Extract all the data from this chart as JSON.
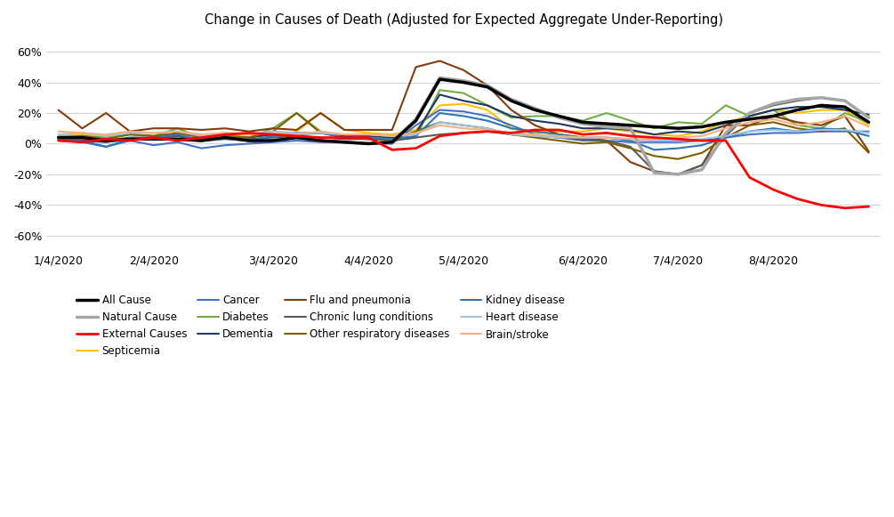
{
  "title": "Change in Causes of Death (Adjusted for Expected Aggregate Under-Reporting)",
  "background_color": "#FFFFFF",
  "grid_color": "#D3D3D3",
  "n_points": 35,
  "xtick_positions": [
    0,
    4,
    9,
    13,
    17,
    22,
    26,
    30,
    34
  ],
  "xtick_labels": [
    "1/4/2020",
    "2/4/2020",
    "3/4/2020",
    "4/4/2020",
    "5/4/2020",
    "6/4/2020",
    "7/4/2020",
    "8/4/2020",
    ""
  ],
  "ylim": [
    -0.7,
    0.7
  ],
  "yticks": [
    -0.6,
    -0.4,
    -0.2,
    0.0,
    0.2,
    0.4,
    0.6
  ],
  "series": [
    {
      "name": "All Cause",
      "color": "#000000",
      "linewidth": 2.5,
      "zorder": 5,
      "data": [
        0.04,
        0.04,
        0.02,
        0.03,
        0.03,
        0.03,
        0.02,
        0.04,
        0.02,
        0.02,
        0.04,
        0.02,
        0.01,
        0.0,
        0.01,
        0.15,
        0.42,
        0.4,
        0.37,
        0.28,
        0.22,
        0.18,
        0.14,
        0.13,
        0.12,
        0.11,
        0.1,
        0.11,
        0.14,
        0.16,
        0.18,
        0.22,
        0.25,
        0.24,
        0.14
      ]
    },
    {
      "name": "Natural Cause",
      "color": "#A6A6A6",
      "linewidth": 2.5,
      "zorder": 4,
      "data": [
        0.04,
        0.04,
        0.02,
        0.03,
        0.03,
        0.03,
        0.02,
        0.04,
        0.02,
        0.02,
        0.04,
        0.02,
        0.01,
        0.0,
        0.01,
        0.16,
        0.43,
        0.41,
        0.38,
        0.29,
        0.23,
        0.17,
        0.13,
        0.11,
        0.1,
        -0.19,
        -0.2,
        -0.17,
        0.07,
        0.2,
        0.26,
        0.29,
        0.3,
        0.28,
        0.17
      ]
    },
    {
      "name": "External Causes",
      "color": "#FF0000",
      "linewidth": 2.0,
      "zorder": 6,
      "data": [
        0.02,
        0.01,
        0.03,
        0.02,
        0.04,
        0.02,
        0.04,
        0.06,
        0.07,
        0.06,
        0.05,
        0.04,
        0.04,
        0.04,
        -0.04,
        -0.03,
        0.05,
        0.07,
        0.08,
        0.07,
        0.09,
        0.09,
        0.06,
        0.07,
        0.05,
        0.04,
        0.03,
        0.02,
        0.02,
        -0.22,
        -0.3,
        -0.36,
        -0.4,
        -0.42,
        -0.41
      ]
    },
    {
      "name": "Septicemia",
      "color": "#FFC000",
      "linewidth": 1.5,
      "zorder": 3,
      "data": [
        0.05,
        0.06,
        0.05,
        0.06,
        0.05,
        0.06,
        0.05,
        0.05,
        0.06,
        0.05,
        0.08,
        0.2,
        0.09,
        0.07,
        0.06,
        0.09,
        0.25,
        0.26,
        0.22,
        0.1,
        0.07,
        0.08,
        0.08,
        0.1,
        0.08,
        0.06,
        0.05,
        0.08,
        0.14,
        0.18,
        0.22,
        0.2,
        0.22,
        0.22,
        0.12
      ]
    },
    {
      "name": "Cancer",
      "color": "#4472C4",
      "linewidth": 1.5,
      "zorder": 3,
      "data": [
        0.02,
        0.01,
        -0.02,
        0.02,
        -0.01,
        0.01,
        -0.03,
        -0.01,
        0.0,
        0.01,
        0.02,
        0.01,
        0.01,
        0.0,
        0.0,
        0.12,
        0.22,
        0.21,
        0.18,
        0.12,
        0.06,
        0.04,
        0.02,
        0.02,
        0.01,
        0.01,
        0.01,
        0.02,
        0.04,
        0.06,
        0.07,
        0.07,
        0.08,
        0.08,
        0.08
      ]
    },
    {
      "name": "Diabetes",
      "color": "#70AD47",
      "linewidth": 1.5,
      "zorder": 3,
      "data": [
        0.04,
        0.05,
        0.04,
        0.06,
        0.05,
        0.1,
        0.04,
        0.05,
        0.04,
        0.1,
        0.2,
        0.08,
        0.05,
        0.03,
        0.02,
        0.04,
        0.35,
        0.33,
        0.25,
        0.17,
        0.18,
        0.18,
        0.15,
        0.2,
        0.15,
        0.1,
        0.14,
        0.13,
        0.25,
        0.18,
        0.22,
        0.12,
        0.1,
        0.2,
        0.14
      ]
    },
    {
      "name": "Dementia",
      "color": "#1F3864",
      "linewidth": 1.5,
      "zorder": 3,
      "data": [
        0.03,
        0.02,
        0.01,
        0.03,
        0.04,
        0.05,
        0.02,
        0.04,
        0.04,
        0.06,
        0.07,
        0.07,
        0.05,
        0.05,
        0.04,
        0.07,
        0.32,
        0.28,
        0.25,
        0.18,
        0.15,
        0.13,
        0.1,
        0.1,
        0.09,
        0.06,
        0.08,
        0.07,
        0.12,
        0.18,
        0.22,
        0.24,
        0.24,
        0.22,
        0.19
      ]
    },
    {
      "name": "Flu and pneumonia",
      "color": "#843C0C",
      "linewidth": 1.5,
      "zorder": 3,
      "data": [
        0.22,
        0.1,
        0.2,
        0.08,
        0.1,
        0.1,
        0.09,
        0.1,
        0.08,
        0.1,
        0.09,
        0.2,
        0.09,
        0.09,
        0.09,
        0.5,
        0.54,
        0.48,
        0.38,
        0.22,
        0.12,
        0.06,
        0.04,
        0.02,
        -0.12,
        -0.18,
        -0.2,
        -0.14,
        0.12,
        0.12,
        0.18,
        0.14,
        0.12,
        0.18,
        -0.05
      ]
    },
    {
      "name": "Chronic lung conditions",
      "color": "#595959",
      "linewidth": 1.5,
      "zorder": 3,
      "data": [
        0.04,
        0.03,
        0.02,
        0.04,
        0.04,
        0.05,
        0.03,
        0.04,
        0.03,
        0.04,
        0.05,
        0.04,
        0.03,
        0.03,
        0.02,
        0.04,
        0.06,
        0.07,
        0.08,
        0.06,
        0.05,
        0.04,
        0.03,
        0.02,
        -0.02,
        -0.18,
        -0.2,
        -0.14,
        0.05,
        0.2,
        0.25,
        0.28,
        0.3,
        0.28,
        0.17
      ]
    },
    {
      "name": "Other respiratory diseases",
      "color": "#7F6000",
      "linewidth": 1.5,
      "zorder": 3,
      "data": [
        0.04,
        0.05,
        0.03,
        0.06,
        0.05,
        0.07,
        0.04,
        0.05,
        0.04,
        0.08,
        0.2,
        0.07,
        0.04,
        0.03,
        0.03,
        0.08,
        0.14,
        0.12,
        0.1,
        0.06,
        0.04,
        0.02,
        0.0,
        0.01,
        -0.03,
        -0.08,
        -0.1,
        -0.06,
        0.04,
        0.12,
        0.14,
        0.1,
        0.08,
        0.1,
        -0.06
      ]
    },
    {
      "name": "Kidney disease",
      "color": "#2E75B6",
      "linewidth": 1.5,
      "zorder": 3,
      "data": [
        0.03,
        0.02,
        -0.02,
        0.03,
        0.04,
        0.06,
        0.02,
        0.03,
        0.02,
        0.05,
        0.06,
        0.07,
        0.04,
        0.04,
        0.03,
        0.05,
        0.2,
        0.18,
        0.15,
        0.1,
        0.08,
        0.06,
        0.04,
        0.04,
        0.02,
        -0.04,
        -0.03,
        -0.01,
        0.04,
        0.08,
        0.1,
        0.08,
        0.1,
        0.09,
        0.05
      ]
    },
    {
      "name": "Heart disease",
      "color": "#9DC3E6",
      "linewidth": 1.5,
      "zorder": 3,
      "data": [
        0.06,
        0.07,
        0.05,
        0.07,
        0.07,
        0.08,
        0.05,
        0.07,
        0.06,
        0.08,
        0.07,
        0.07,
        0.06,
        0.06,
        0.05,
        0.06,
        0.14,
        0.12,
        0.1,
        0.06,
        0.05,
        0.04,
        0.04,
        0.04,
        0.03,
        0.02,
        0.02,
        0.03,
        0.05,
        0.08,
        0.09,
        0.08,
        0.09,
        0.09,
        0.07
      ]
    },
    {
      "name": "Brain/stroke",
      "color": "#F4B183",
      "linewidth": 1.5,
      "zorder": 3,
      "data": [
        0.08,
        0.07,
        0.06,
        0.08,
        0.07,
        0.08,
        0.06,
        0.07,
        0.06,
        0.07,
        0.06,
        0.08,
        0.06,
        0.06,
        0.05,
        0.07,
        0.12,
        0.1,
        0.09,
        0.07,
        0.06,
        0.05,
        0.04,
        0.04,
        0.03,
        0.03,
        0.04,
        0.05,
        0.1,
        0.14,
        0.16,
        0.12,
        0.14,
        0.18,
        0.11
      ]
    }
  ],
  "legend": [
    [
      "All Cause",
      "Natural Cause",
      "External Causes",
      "Septicemia"
    ],
    [
      "Cancer",
      "Diabetes",
      "Dementia",
      "Flu and pneumonia"
    ],
    [
      "Chronic lung conditions",
      "Other respiratory diseases",
      "Kidney disease",
      "Heart disease"
    ],
    [
      "Brain/stroke"
    ]
  ]
}
